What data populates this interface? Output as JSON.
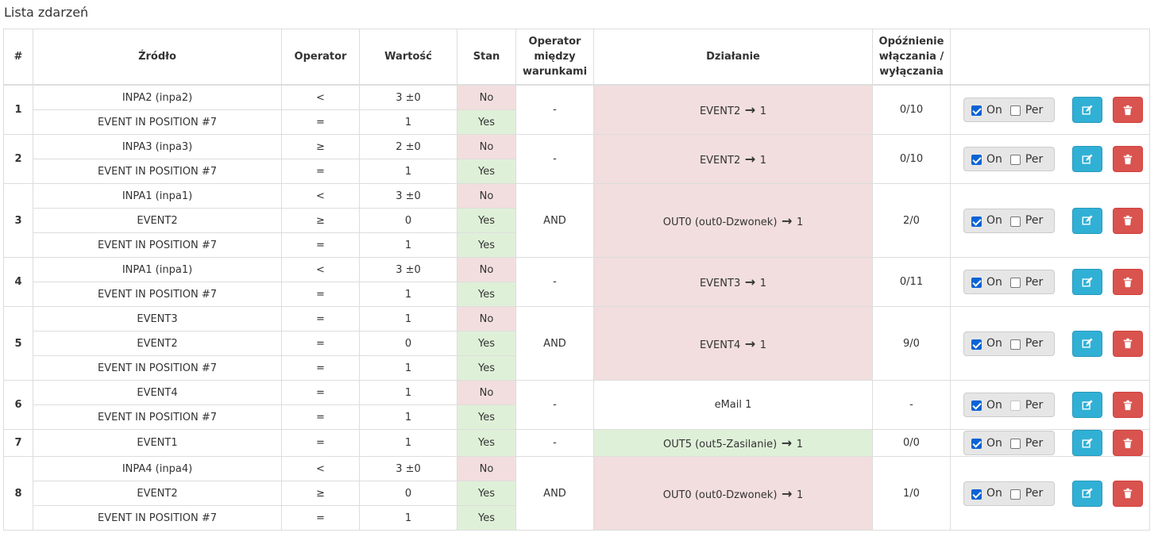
{
  "page_title": "Lista zdarzeń",
  "columns": {
    "num": "#",
    "source": "Źródło",
    "operator": "Operator",
    "value": "Wartość",
    "state": "Stan",
    "cond_op_line1": "Operator",
    "cond_op_line2": "między",
    "cond_op_line3": "warunkami",
    "action": "Działanie",
    "delay_line1": "Opóźnienie",
    "delay_line2": "włączania /",
    "delay_line3": "wyłączania"
  },
  "labels": {
    "on": "On",
    "per": "Per"
  },
  "colors": {
    "pink": "#f2dede",
    "green": "#dff0d8",
    "edit": "#31b0d5",
    "delete": "#d9534f"
  },
  "events": [
    {
      "num": "1",
      "cond_op": "-",
      "action": "EVENT2",
      "action_value": "1",
      "action_color": "pink",
      "delay": "0/10",
      "on": true,
      "per": false,
      "per_disabled": false,
      "conditions": [
        {
          "source": "INPA2 (inpa2)",
          "operator": "<",
          "value": "3 ±0",
          "state": "No"
        },
        {
          "source": "EVENT IN POSITION #7",
          "operator": "=",
          "value": "1",
          "state": "Yes"
        }
      ]
    },
    {
      "num": "2",
      "cond_op": "-",
      "action": "EVENT2",
      "action_value": "1",
      "action_color": "pink",
      "delay": "0/10",
      "on": true,
      "per": false,
      "per_disabled": false,
      "conditions": [
        {
          "source": "INPA3 (inpa3)",
          "operator": "≥",
          "value": "2 ±0",
          "state": "No"
        },
        {
          "source": "EVENT IN POSITION #7",
          "operator": "=",
          "value": "1",
          "state": "Yes"
        }
      ]
    },
    {
      "num": "3",
      "cond_op": "AND",
      "action": "OUT0 (out0-Dzwonek)",
      "action_value": "1",
      "action_color": "pink",
      "delay": "2/0",
      "on": true,
      "per": false,
      "per_disabled": false,
      "conditions": [
        {
          "source": "INPA1 (inpa1)",
          "operator": "<",
          "value": "3 ±0",
          "state": "No"
        },
        {
          "source": "EVENT2",
          "operator": "≥",
          "value": "0",
          "state": "Yes"
        },
        {
          "source": "EVENT IN POSITION #7",
          "operator": "=",
          "value": "1",
          "state": "Yes"
        }
      ]
    },
    {
      "num": "4",
      "cond_op": "-",
      "action": "EVENT3",
      "action_value": "1",
      "action_color": "pink",
      "delay": "0/11",
      "on": true,
      "per": false,
      "per_disabled": false,
      "conditions": [
        {
          "source": "INPA1 (inpa1)",
          "operator": "<",
          "value": "3 ±0",
          "state": "No"
        },
        {
          "source": "EVENT IN POSITION #7",
          "operator": "=",
          "value": "1",
          "state": "Yes"
        }
      ]
    },
    {
      "num": "5",
      "cond_op": "AND",
      "action": "EVENT4",
      "action_value": "1",
      "action_color": "pink",
      "delay": "9/0",
      "on": true,
      "per": false,
      "per_disabled": false,
      "conditions": [
        {
          "source": "EVENT3",
          "operator": "=",
          "value": "1",
          "state": "No"
        },
        {
          "source": "EVENT2",
          "operator": "=",
          "value": "0",
          "state": "Yes"
        },
        {
          "source": "EVENT IN POSITION #7",
          "operator": "=",
          "value": "1",
          "state": "Yes"
        }
      ]
    },
    {
      "num": "6",
      "cond_op": "-",
      "action": "eMail 1",
      "action_value": "",
      "action_color": "none",
      "delay": "-",
      "on": true,
      "per": false,
      "per_disabled": true,
      "conditions": [
        {
          "source": "EVENT4",
          "operator": "=",
          "value": "1",
          "state": "No"
        },
        {
          "source": "EVENT IN POSITION #7",
          "operator": "=",
          "value": "1",
          "state": "Yes"
        }
      ]
    },
    {
      "num": "7",
      "cond_op": "-",
      "action": "OUT5 (out5-Zasilanie)",
      "action_value": "1",
      "action_color": "green",
      "delay": "0/0",
      "on": true,
      "per": false,
      "per_disabled": false,
      "conditions": [
        {
          "source": "EVENT1",
          "operator": "=",
          "value": "1",
          "state": "Yes"
        }
      ]
    },
    {
      "num": "8",
      "cond_op": "AND",
      "action": "OUT0 (out0-Dzwonek)",
      "action_value": "1",
      "action_color": "pink",
      "delay": "1/0",
      "on": true,
      "per": false,
      "per_disabled": false,
      "conditions": [
        {
          "source": "INPA4 (inpa4)",
          "operator": "<",
          "value": "3 ±0",
          "state": "No"
        },
        {
          "source": "EVENT2",
          "operator": "≥",
          "value": "0",
          "state": "Yes"
        },
        {
          "source": "EVENT IN POSITION #7",
          "operator": "=",
          "value": "1",
          "state": "Yes"
        }
      ]
    }
  ]
}
